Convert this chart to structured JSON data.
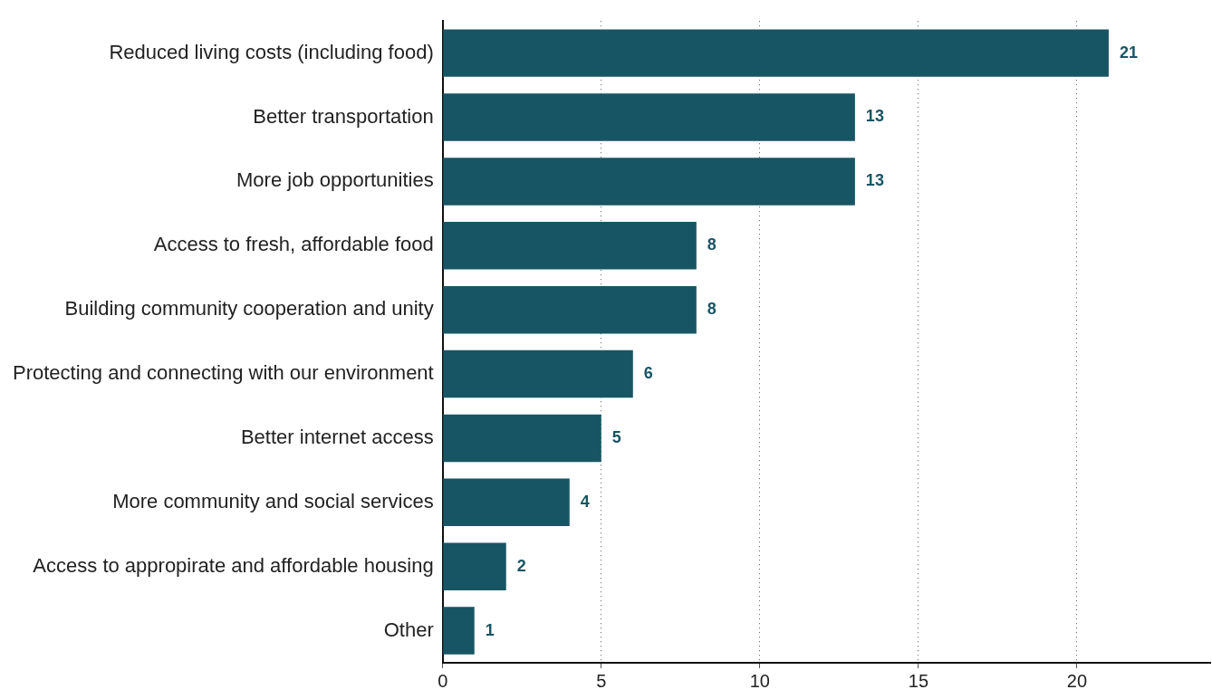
{
  "chart_data": {
    "type": "bar",
    "orientation": "horizontal",
    "categories": [
      "Reduced living costs (including food)",
      "Better transportation",
      "More job opportunities",
      "Access to fresh, affordable food",
      "Building community cooperation and unity",
      "Protecting and connecting with our environment",
      "Better internet access",
      "More community and social services",
      "Access to appropirate and affordable housing",
      "Other"
    ],
    "values": [
      21,
      13,
      13,
      8,
      8,
      6,
      5,
      4,
      2,
      1
    ],
    "color": "#185564",
    "xlim": [
      0,
      24.2
    ],
    "xticks": [
      0,
      5,
      10,
      15,
      20
    ],
    "grid": "x",
    "legend": false,
    "data_labels": true
  }
}
